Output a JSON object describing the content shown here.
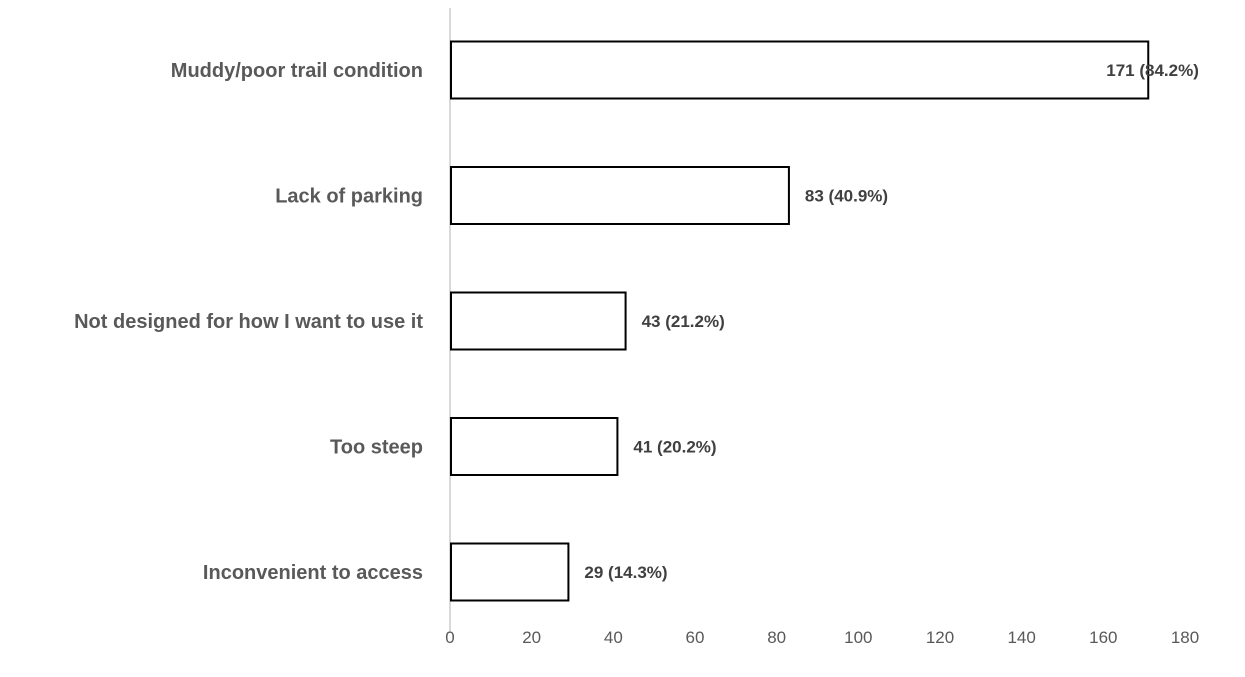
{
  "chart_data": {
    "type": "bar",
    "orientation": "horizontal",
    "categories": [
      "Muddy/poor trail condition",
      "Lack of parking",
      "Not designed for how I want to use it",
      "Too steep",
      "Inconvenient to access"
    ],
    "values": [
      171,
      83,
      43,
      41,
      29
    ],
    "data_labels": [
      "171 (84.2%)",
      "83 (40.9%)",
      "43 (21.2%)",
      "41 (20.2%)",
      "29 (14.3%)"
    ],
    "xlim": [
      0,
      180
    ],
    "x_ticks": [
      0,
      20,
      40,
      60,
      80,
      100,
      120,
      140,
      160,
      180
    ],
    "x_tick_labels": [
      "0",
      "20",
      "40",
      "60",
      "80",
      "100",
      "120",
      "140",
      "160",
      "180"
    ],
    "grid": false,
    "legend": "none",
    "colors": {
      "bar_fill": "#ffffff",
      "bar_stroke": "#000000",
      "axis": "#d9d9d9",
      "category_text": "#595959",
      "label_text": "#404040"
    }
  }
}
